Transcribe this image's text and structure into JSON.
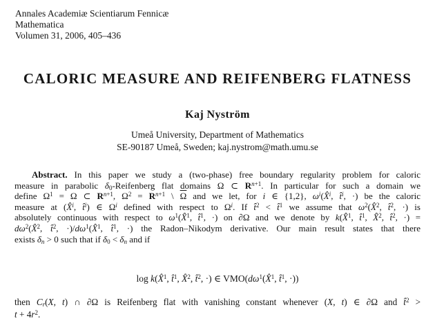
{
  "journal": {
    "name": "Annales Academiæ Scientiarum Fennicæ",
    "series": "Mathematica",
    "volume_line": "Volumen 31, 2006, 405–436"
  },
  "title": "CALORIC MEASURE AND REIFENBERG FLATNESS",
  "author": {
    "name": "Kaj Nyström",
    "affiliation": "Umeå University, Department of Mathematics",
    "contact": "SE-90187 Umeå, Sweden; kaj.nystrom@math.umu.se"
  },
  "abstract": {
    "lines": [
      "<b>Abstract.</b> In this paper we study a (two-phase) free boundary regularity problem for caloric",
      "measure in parabolic <i>δ</i><sub>0</sub>-Reifenberg flat domains Ω ⊂ <b>R</b><sup><i>n</i>+1</sup>. In particular for such a domain we",
      "define Ω<sup>1</sup> = Ω ⊂ <b>R</b><sup><i>n</i>+1</sup>, Ω<sup>2</sup> = <b>R</b><sup><i>n</i>+1</sup> \\ <span class='ol'>Ω</span> and we let, for <i>i</i> ∈ {1,2}, <i>ω</i><sup><i>i</i></sup>(<i>X̂</i><sup><i>i</i></sup>, <i>t̂</i><sup><i>i</i></sup>, ·) be the caloric",
      "measure at (<i>X̂</i><sup><i>i</i></sup>, <i>t̂</i><sup><i>i</i></sup>) ∈ Ω<sup><i>i</i></sup> defined with respect to Ω<sup><i>i</i></sup>. If <i>t̂</i><sup>2</sup> &lt; <i>t̂</i><sup>1</sup> we assume that <i>ω</i><sup>2</sup>(<i>X̂</i><sup>2</sup>, <i>t̂</i><sup>2</sup>, ·) is",
      "absolutely continuous with respect to <i>ω</i><sup>1</sup>(<i>X̂</i><sup>1</sup>, <i>t̂</i><sup>1</sup>, ·) on ∂Ω and we denote by <i>k</i>(<i>X̂</i><sup>1</sup>, <i>t̂</i><sup>1</sup>, <i>X̂</i><sup>2</sup>, <i>t̂</i><sup>2</sup>, ·) =",
      "<i>dω</i><sup>2</sup>(<i>X̂</i><sup>2</sup>, <i>t̂</i><sup>2</sup>, ·)/<i>dω</i><sup>1</sup>(<i>X̂</i><sup>1</sup>, <i>t̂</i><sup>1</sup>, ·) the Radon–Nikodym derivative. Our main result states that there",
      "exists <i>δ</i><sub><i>n</i></sub> &gt; 0 such that if <i>δ</i><sub>0</sub> &lt; <i>δ</i><sub><i>n</i></sub> and if"
    ]
  },
  "equation": "log <i>k</i>(<i>X̂</i><sup>1</sup>, <i>t̂</i><sup>1</sup>, <i>X̂</i><sup>2</sup>, <i>t̂</i><sup>2</sup>, ·) ∈ VMO(<i>dω</i><sup>1</sup>(<i>X̂</i><sup>1</sup>, <i>t̂</i><sup>1</sup>, ·))",
  "closing": {
    "lines": [
      "then <i>C</i><sub><i>r</i></sub>(<i>X</i>, <i>t</i>) ∩ ∂Ω is Reifenberg flat with vanishing constant whenever (<i>X</i>, <i>t</i>) ∈ ∂Ω and <i>t̂</i><sup>2</sup> &gt;",
      "<i>t</i> + 4<i>r</i><sup>2</sup>."
    ]
  }
}
